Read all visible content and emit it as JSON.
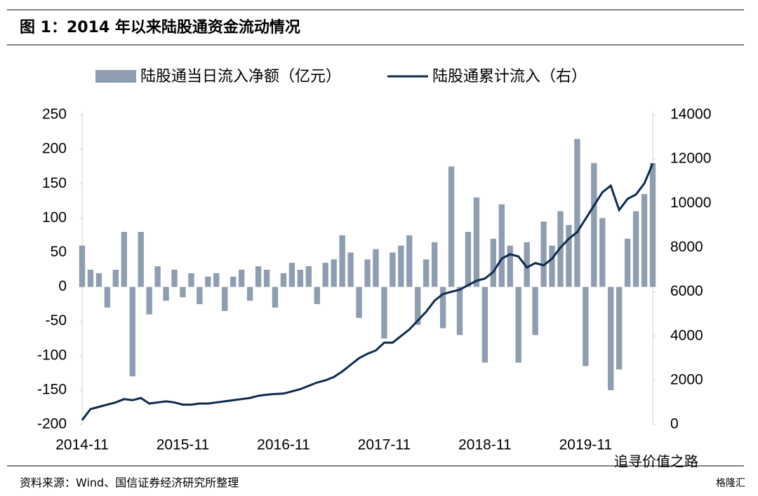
{
  "chart_data": {
    "type": "combo",
    "title": "图 1：2014 年以来陆股通资金流动情况",
    "source": "资料来源：Wind、国信证券经济研究所整理",
    "watermark": "追寻价值之路",
    "logo": "格隆汇",
    "categories": [
      "2014-11",
      null,
      null,
      null,
      null,
      null,
      null,
      null,
      null,
      null,
      null,
      null,
      "2015-11",
      null,
      null,
      null,
      null,
      null,
      null,
      null,
      null,
      null,
      null,
      null,
      "2016-11",
      null,
      null,
      null,
      null,
      null,
      null,
      null,
      null,
      null,
      null,
      null,
      "2017-11",
      null,
      null,
      null,
      null,
      null,
      null,
      null,
      null,
      null,
      null,
      null,
      "2018-11",
      null,
      null,
      null,
      null,
      null,
      null,
      null,
      null,
      null,
      null,
      null,
      "2019-11",
      null,
      null,
      null,
      null,
      null,
      null,
      null,
      null
    ],
    "series": [
      {
        "name": "陆股通当日流入净额（亿元）",
        "type": "bar",
        "color": "#8e9db0",
        "values": [
          60,
          25,
          20,
          -30,
          25,
          80,
          -130,
          80,
          -40,
          30,
          -20,
          25,
          -15,
          20,
          -25,
          15,
          20,
          -35,
          15,
          25,
          -20,
          30,
          25,
          -30,
          20,
          35,
          25,
          30,
          -25,
          35,
          40,
          75,
          50,
          -45,
          40,
          55,
          -75,
          50,
          60,
          75,
          -55,
          40,
          65,
          -60,
          175,
          -70,
          80,
          130,
          -110,
          70,
          120,
          60,
          -110,
          65,
          -70,
          95,
          60,
          110,
          90,
          215,
          -115,
          180,
          100,
          -150,
          -120,
          70,
          110,
          135,
          180
        ]
      },
      {
        "name": "陆股通累计流入（右）",
        "type": "line",
        "axis": "y2",
        "color": "#0d2a52",
        "values": [
          200,
          700,
          800,
          900,
          1000,
          1150,
          1100,
          1200,
          950,
          1000,
          1050,
          1000,
          900,
          900,
          950,
          950,
          1000,
          1050,
          1100,
          1150,
          1200,
          1300,
          1350,
          1380,
          1400,
          1500,
          1600,
          1750,
          1900,
          2000,
          2150,
          2400,
          2700,
          3000,
          3200,
          3350,
          3700,
          3700,
          4000,
          4300,
          4700,
          5100,
          5600,
          5900,
          6000,
          6100,
          6300,
          6500,
          6600,
          6900,
          7500,
          7700,
          7600,
          7100,
          7300,
          7200,
          7500,
          8000,
          8400,
          8700,
          9300,
          9900,
          10500,
          10800,
          9700,
          10200,
          10400,
          10900,
          11800
        ]
      }
    ],
    "ylim": [
      -200,
      250
    ],
    "yticks": [
      -200,
      -150,
      -100,
      -50,
      0,
      50,
      100,
      150,
      200,
      250
    ],
    "y2lim": [
      0,
      14000
    ],
    "y2ticks": [
      0,
      2000,
      4000,
      6000,
      8000,
      10000,
      12000,
      14000
    ],
    "legend": "top"
  }
}
